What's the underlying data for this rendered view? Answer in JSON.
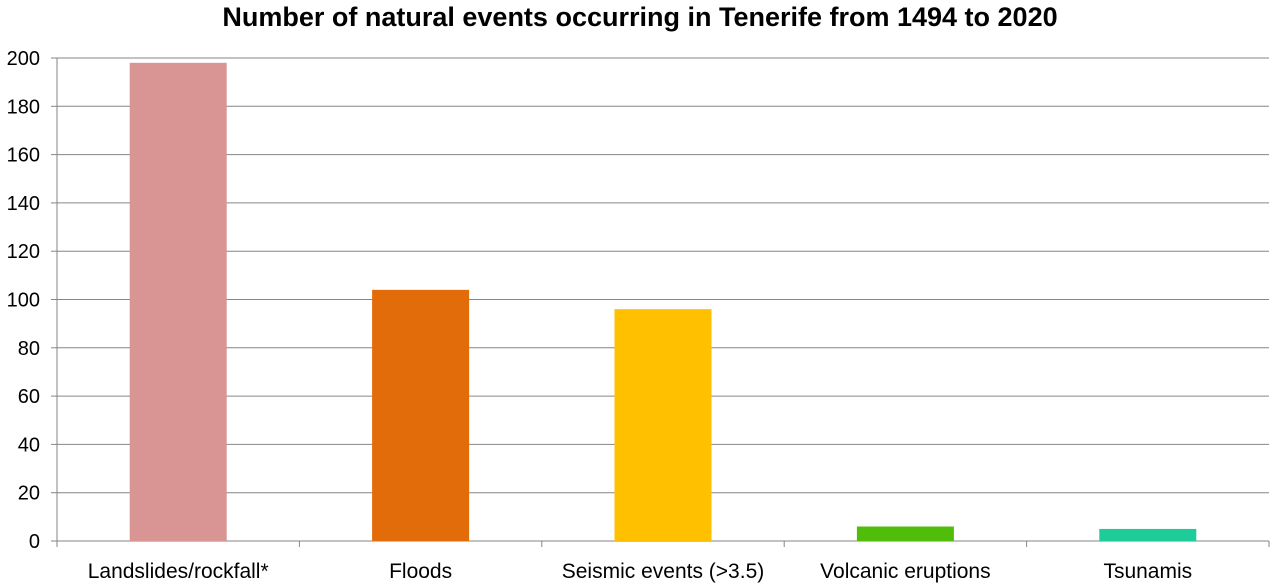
{
  "chart_data": {
    "type": "bar",
    "title": "Number of natural events occurring in Tenerife from 1494 to 2020",
    "xlabel": "",
    "ylabel": "",
    "categories": [
      "Landslides/rockfall*",
      "Floods",
      "Seismic events (>3.5)",
      "Volcanic eruptions",
      "Tsunamis"
    ],
    "values": [
      198,
      104,
      96,
      6,
      5
    ],
    "colors": [
      "#d99594",
      "#e36c0a",
      "#ffc000",
      "#4fbd0a",
      "#1ecc99"
    ],
    "ylim": [
      0,
      200
    ],
    "yticks": [
      0,
      20,
      40,
      60,
      80,
      100,
      120,
      140,
      160,
      180,
      200
    ],
    "grid": true,
    "legend": "none"
  }
}
